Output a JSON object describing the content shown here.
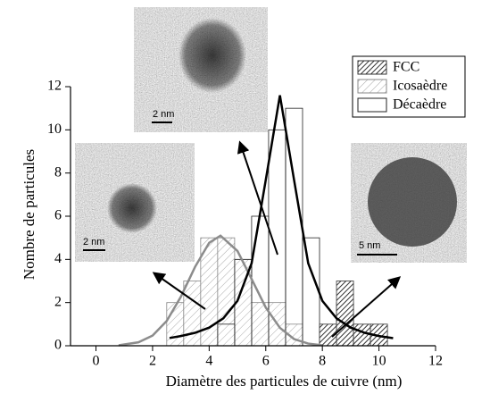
{
  "chart_data": {
    "type": "histogram",
    "xlabel": "Diamètre des particules de cuivre (nm)",
    "ylabel": "Nombre de particules",
    "xlim": [
      -0.9,
      12
    ],
    "ylim": [
      0,
      12
    ],
    "xticks": [
      0,
      2,
      4,
      6,
      8,
      10,
      12
    ],
    "yticks": [
      0,
      2,
      4,
      6,
      8,
      10,
      12
    ],
    "bins": [
      2.5,
      3.1,
      3.7,
      4.3,
      4.9,
      5.5,
      6.1,
      6.7,
      7.3,
      7.9,
      8.5,
      9.1,
      9.7,
      10.3
    ],
    "legend": "top-right",
    "series": [
      {
        "name": "FCC",
        "color": "#333333",
        "pattern": "dense-hatch",
        "values": [
          0,
          0,
          0,
          0,
          0,
          0,
          0,
          0,
          0,
          1,
          3,
          1,
          1
        ]
      },
      {
        "name": "Icosaèdre",
        "color": "#888888",
        "pattern": "light-hatch",
        "values": [
          2,
          3,
          5,
          5,
          4,
          2,
          2,
          1,
          0,
          0,
          0,
          0,
          0
        ]
      },
      {
        "name": "Décaèdre",
        "color": "#222222",
        "pattern": "none",
        "values": [
          0,
          0,
          0,
          1,
          4,
          6,
          10,
          11,
          5,
          0,
          2,
          0,
          0
        ]
      }
    ],
    "fits": [
      {
        "color": "#8c8c8c",
        "x": [
          0.8,
          1.5,
          2,
          2.5,
          3,
          3.5,
          4,
          4.4,
          5,
          5.5,
          6,
          6.5,
          7,
          7.5,
          8
        ],
        "values": [
          0.02,
          0.16,
          0.47,
          1.15,
          2.27,
          3.65,
          4.77,
          5.1,
          4.39,
          3.09,
          1.77,
          0.83,
          0.31,
          0.1,
          0.02
        ]
      },
      {
        "color": "#000000",
        "x": [
          2.6,
          3,
          3.5,
          4,
          4.5,
          5,
          5.5,
          6,
          6.5,
          7,
          7.5,
          8,
          8.5,
          9,
          9.5,
          10,
          10.5
        ],
        "values": [
          0.36,
          0.45,
          0.6,
          0.84,
          1.27,
          2.08,
          3.82,
          7.68,
          11.6,
          7.68,
          3.82,
          2.08,
          1.27,
          0.84,
          0.6,
          0.45,
          0.35
        ]
      }
    ],
    "annotations": [
      "2 nm",
      "2 nm",
      "5 nm"
    ]
  }
}
